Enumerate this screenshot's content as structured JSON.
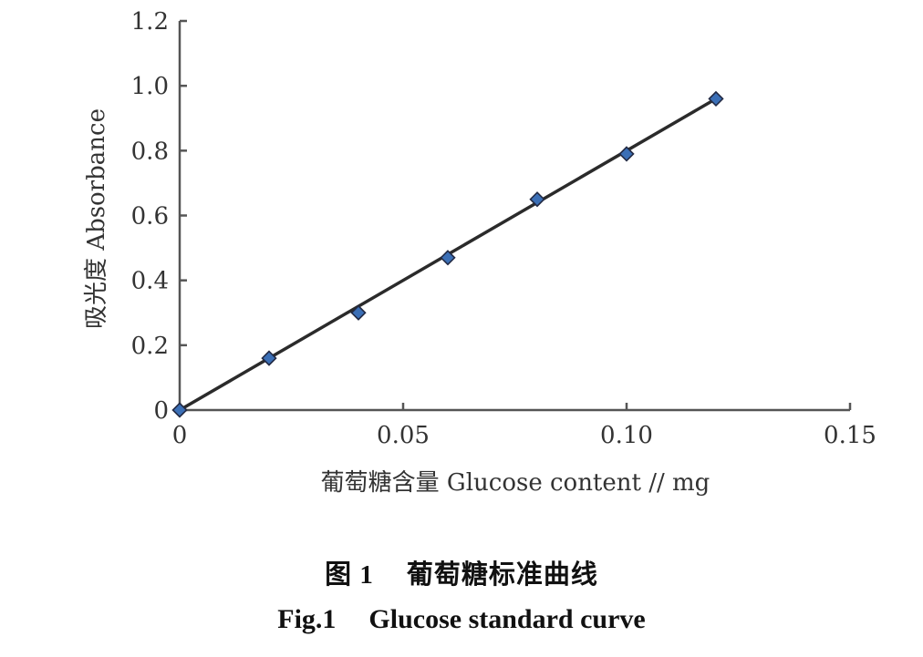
{
  "chart_data": {
    "type": "scatter",
    "series": [
      {
        "x": [
          0,
          0.02,
          0.04,
          0.06,
          0.08,
          0.1,
          0.12
        ],
        "y": [
          0,
          0.16,
          0.3,
          0.47,
          0.65,
          0.79,
          0.96
        ],
        "marker": "diamond",
        "color": "#3b6fb6"
      }
    ],
    "trendline": {
      "x": [
        0,
        0.12
      ],
      "y": [
        0,
        0.96
      ],
      "color": "#2b2b2b"
    },
    "xlabel": "葡萄糖含量 Glucose content // mg",
    "ylabel": "吸光度 Absorbance",
    "xlim": [
      0,
      0.15
    ],
    "ylim": [
      0,
      1.2
    ],
    "x_ticks": [
      "0",
      "0.05",
      "0.10",
      "0.15"
    ],
    "y_ticks": [
      "0",
      "0.2",
      "0.4",
      "0.6",
      "0.8",
      "1.0",
      "1.2"
    ],
    "grid": false
  },
  "caption": {
    "cn_fig": "图 1",
    "cn_title": "葡萄糖标准曲线",
    "en_fig": "Fig.1",
    "en_title": "Glucose standard curve"
  }
}
